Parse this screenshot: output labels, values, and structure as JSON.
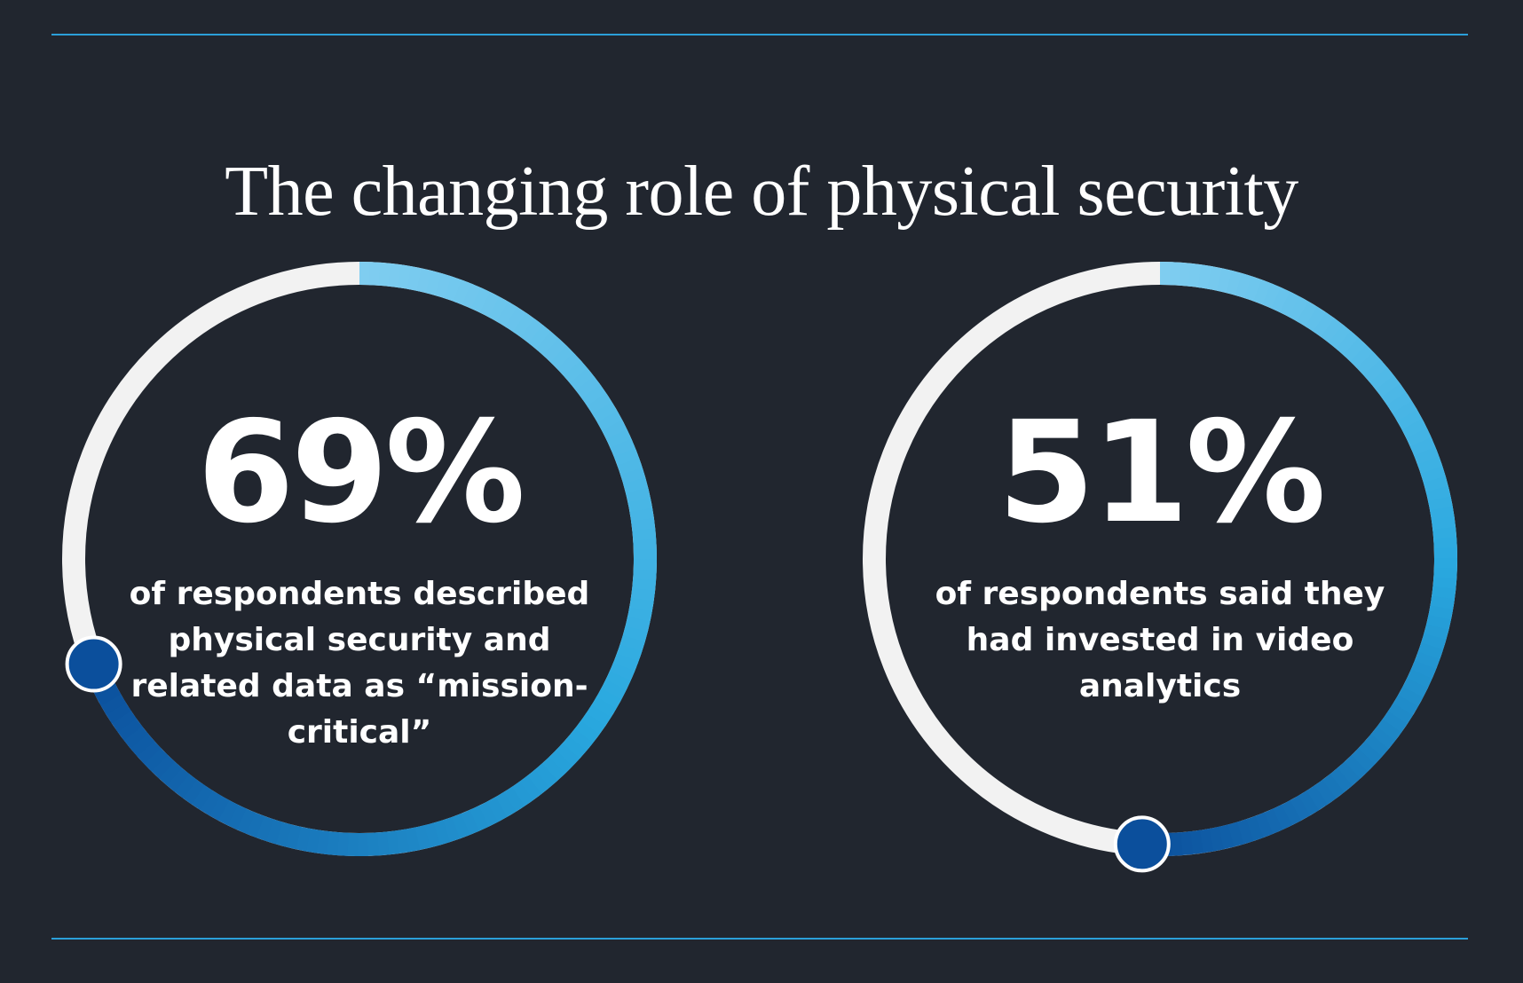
{
  "title": "The changing role of physical security",
  "colors": {
    "background": "#21262f",
    "rule": "#2b9fd9",
    "track": "#f2f2f2",
    "progress_start": "#7fcdf0",
    "progress_mid": "#29a8df",
    "progress_end": "#0b4f9c",
    "knob": "#0b4f9c"
  },
  "chart_data": [
    {
      "type": "pie",
      "value": 69,
      "unit": "%",
      "label": "69%",
      "description": "of respondents described physical security and related data as “mission-critical”"
    },
    {
      "type": "pie",
      "value": 51,
      "unit": "%",
      "label": "51%",
      "description": "of respondents said they had invested in video analytics"
    }
  ]
}
